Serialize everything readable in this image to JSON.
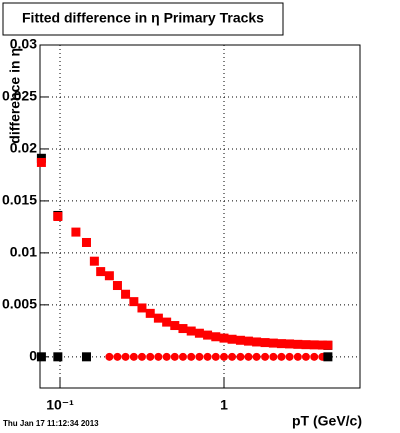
{
  "chart_data": {
    "type": "scatter",
    "title": "Fitted difference in η  Primary Tracks",
    "x_label": "pT (GeV/c)",
    "y_label": "difference in η",
    "timestamp": "Thu Jan 17 11:12:34 2013",
    "log_x": true,
    "grid": true,
    "xlim": [
      0.0755,
      6.75
    ],
    "ylim": [
      -0.003,
      0.03
    ],
    "xticks": [
      {
        "value": 0.1,
        "label": "10⁻¹"
      },
      1
    ],
    "yticks": [
      0,
      0.005,
      0.01,
      0.015,
      0.02,
      0.025,
      0.03
    ],
    "series": [
      {
        "color": "#000000",
        "marker": "square",
        "x": [
          0.077,
          0.097,
          0.077,
          0.097,
          0.145,
          4.3,
          4.3
        ],
        "values": [
          0.0191,
          0.0136,
          0,
          0,
          0,
          0.0011,
          0
        ]
      },
      {
        "color": "#ff0000",
        "marker": "square",
        "x": [
          0.077,
          0.097,
          0.125,
          0.145,
          0.162,
          0.177,
          0.2,
          0.224,
          0.251,
          0.282,
          0.316,
          0.355,
          0.398,
          0.447,
          0.501,
          0.562,
          0.631,
          0.708,
          0.794,
          0.891,
          1,
          1.12,
          1.26,
          1.41,
          1.58,
          1.78,
          2,
          2.24,
          2.51,
          2.82,
          3.16,
          3.55,
          3.98,
          4.3
        ],
        "values": [
          0.0187,
          0.0135,
          0.012,
          0.011,
          0.0092,
          0.0082,
          0.0078,
          0.00686,
          0.00602,
          0.00531,
          0.0047,
          0.00418,
          0.00372,
          0.00334,
          0.00301,
          0.00272,
          0.00248,
          0.00227,
          0.00209,
          0.00193,
          0.0018,
          0.00169,
          0.00159,
          0.00151,
          0.00143,
          0.00137,
          0.00132,
          0.00127,
          0.00124,
          0.0012,
          0.00117,
          0.00115,
          0.00113,
          0.00112
        ]
      },
      {
        "color": "#ff0000",
        "marker": "circle",
        "x": [
          0.2,
          0.224,
          0.251,
          0.282,
          0.316,
          0.355,
          0.398,
          0.447,
          0.501,
          0.562,
          0.631,
          0.708,
          0.794,
          0.891,
          1,
          1.12,
          1.26,
          1.41,
          1.58,
          1.78,
          2,
          2.24,
          2.51,
          2.82,
          3.16,
          3.55,
          3.98
        ],
        "values": [
          0,
          0,
          0,
          0,
          0,
          0,
          0,
          0,
          0,
          0,
          0,
          0,
          0,
          0,
          0,
          0,
          0,
          0,
          0,
          0,
          0,
          0,
          0,
          0,
          0,
          0,
          0
        ]
      }
    ]
  }
}
